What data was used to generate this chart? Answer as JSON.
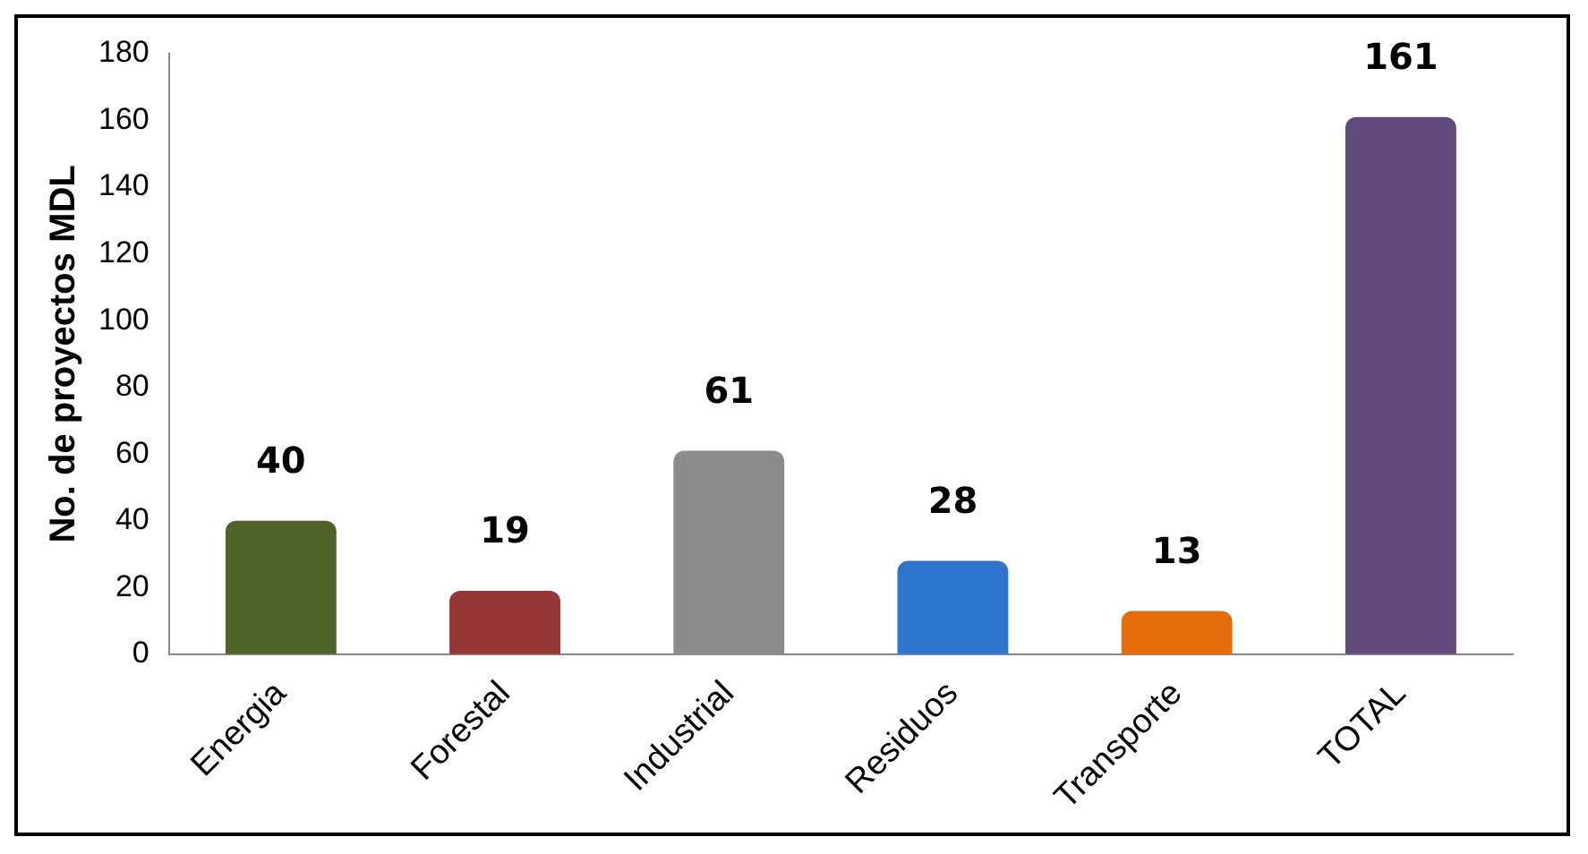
{
  "chart_data": {
    "type": "bar",
    "ylabel": "No. de proyectos MDL",
    "categories": [
      "Energia",
      "Forestal",
      "Industrial",
      "Residuos",
      "Transporte",
      "TOTAL"
    ],
    "values": [
      40,
      19,
      61,
      28,
      13,
      161
    ],
    "colors": [
      "#4f6228",
      "#953735",
      "#8c8c8c",
      "#2e75d0",
      "#e46c0a",
      "#604a7b"
    ],
    "ylim": [
      0,
      180
    ],
    "yticks": [
      0,
      20,
      40,
      60,
      80,
      100,
      120,
      140,
      160,
      180
    ],
    "grid": false,
    "legend": false,
    "data_labels": true
  }
}
